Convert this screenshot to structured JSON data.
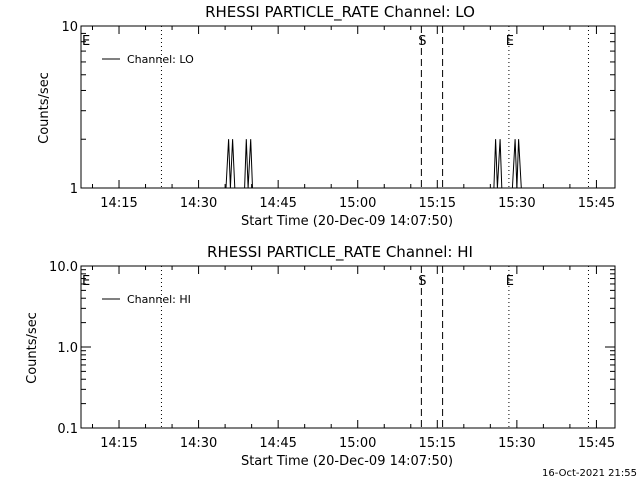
{
  "footer_timestamp": "16-Oct-2021 21:55",
  "chart_data": [
    {
      "type": "line",
      "title": "RHESSI PARTICLE_RATE Channel: LO",
      "xlabel": "Start Time (20-Dec-09 14:07:50)",
      "ylabel": "Counts/sec",
      "yscale": "log",
      "ylim": [
        1,
        10
      ],
      "y_ticks": [
        "1",
        "10"
      ],
      "xlim": [
        "14:07:50",
        "15:48:30"
      ],
      "x_ticks": [
        "14:15",
        "14:30",
        "14:45",
        "15:00",
        "15:15",
        "15:30",
        "15:45"
      ],
      "legend": "Channel: LO",
      "legend_position": "top-left",
      "markers": [
        {
          "label": "E",
          "time": "14:07:50",
          "style": "none"
        },
        {
          "label": "",
          "time": "14:23:00",
          "style": "dotted"
        },
        {
          "label": "S",
          "time": "15:12:00",
          "style": "dashed"
        },
        {
          "label": "",
          "time": "15:16:00",
          "style": "dashed"
        },
        {
          "label": "E",
          "time": "15:28:30",
          "style": "dotted"
        },
        {
          "label": "",
          "time": "15:43:30",
          "style": "dotted"
        }
      ],
      "series": [
        {
          "x": [
            "14:35:10",
            "14:35:40",
            "14:36:00",
            "14:36:25",
            "14:36:50",
            "14:38:40",
            "14:39:00",
            "14:39:20",
            "14:39:50",
            "14:40:10",
            "14:40:30",
            "15:25:40",
            "15:26:00",
            "15:26:20",
            "15:26:50",
            "15:27:10",
            "15:27:30",
            "15:29:10",
            "15:29:40",
            "15:30:00",
            "15:30:20",
            "15:30:50"
          ],
          "values": [
            1,
            2,
            1,
            2,
            1,
            1,
            2,
            1,
            2,
            1,
            1,
            1,
            2,
            1,
            2,
            1,
            1,
            1,
            2,
            1,
            2,
            1
          ]
        }
      ]
    },
    {
      "type": "line",
      "title": "RHESSI PARTICLE_RATE Channel: HI",
      "xlabel": "Start Time (20-Dec-09 14:07:50)",
      "ylabel": "Counts/sec",
      "yscale": "log",
      "ylim": [
        0.1,
        10
      ],
      "y_ticks": [
        "0.1",
        "1.0",
        "10.0"
      ],
      "xlim": [
        "14:07:50",
        "15:48:30"
      ],
      "x_ticks": [
        "14:15",
        "14:30",
        "14:45",
        "15:00",
        "15:15",
        "15:30",
        "15:45"
      ],
      "legend": "Channel: HI",
      "legend_position": "top-left",
      "markers": [
        {
          "label": "E",
          "time": "14:07:50",
          "style": "none"
        },
        {
          "label": "",
          "time": "14:23:00",
          "style": "dotted"
        },
        {
          "label": "S",
          "time": "15:12:00",
          "style": "dashed"
        },
        {
          "label": "",
          "time": "15:16:00",
          "style": "dashed"
        },
        {
          "label": "E",
          "time": "15:28:30",
          "style": "dotted"
        },
        {
          "label": "",
          "time": "15:43:30",
          "style": "dotted"
        }
      ],
      "series": [
        {
          "x": [],
          "values": []
        }
      ]
    }
  ]
}
